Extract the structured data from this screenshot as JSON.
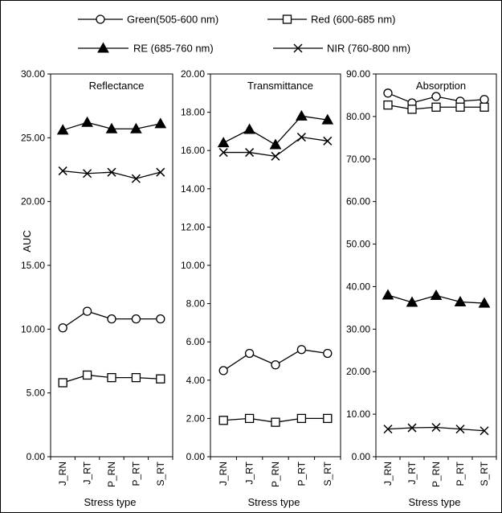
{
  "figure_border": true,
  "legend": {
    "placement": "top",
    "items": [
      {
        "label": "Green(505-600 nm)",
        "marker": "circle-open"
      },
      {
        "label": "Red (600-685 nm)",
        "marker": "square-open"
      },
      {
        "label": "RE (685-760 nm)",
        "marker": "triangle-filled"
      },
      {
        "label": "NIR (760-800 nm)",
        "marker": "x-cross"
      }
    ]
  },
  "chart_data": [
    {
      "type": "line",
      "title": "Reflectance",
      "ylabel": "AUC",
      "xlabel": "Stress type",
      "categories": [
        "J_RN",
        "J_RT",
        "P_RN",
        "P_RT",
        "S_RT"
      ],
      "ylim": [
        0,
        30
      ],
      "yticks": [
        "0.00",
        "5.00",
        "10.00",
        "15.00",
        "20.00",
        "25.00",
        "30.00"
      ],
      "series": [
        {
          "name": "Green(505-600 nm)",
          "marker": "circle-open",
          "values": [
            10.1,
            11.4,
            10.8,
            10.8,
            10.8
          ]
        },
        {
          "name": "Red (600-685 nm)",
          "marker": "square-open",
          "values": [
            5.8,
            6.4,
            6.2,
            6.2,
            6.1
          ]
        },
        {
          "name": "RE (685-760 nm)",
          "marker": "triangle-filled",
          "values": [
            25.6,
            26.2,
            25.7,
            25.7,
            26.1
          ]
        },
        {
          "name": "NIR (760-800 nm)",
          "marker": "x-cross",
          "values": [
            22.4,
            22.2,
            22.3,
            21.8,
            22.3
          ]
        }
      ]
    },
    {
      "type": "line",
      "title": "Transmittance",
      "ylabel": "",
      "xlabel": "Stress type",
      "categories": [
        "J_RN",
        "J_RT",
        "P_RN",
        "P_RT",
        "S_RT"
      ],
      "ylim": [
        0,
        20
      ],
      "yticks": [
        "0.00",
        "2.00",
        "4.00",
        "6.00",
        "8.00",
        "10.00",
        "12.00",
        "14.00",
        "16.00",
        "18.00",
        "20.00"
      ],
      "series": [
        {
          "name": "Green(505-600 nm)",
          "marker": "circle-open",
          "values": [
            4.5,
            5.4,
            4.8,
            5.6,
            5.4
          ]
        },
        {
          "name": "Red (600-685 nm)",
          "marker": "square-open",
          "values": [
            1.9,
            2.0,
            1.8,
            2.0,
            2.0
          ]
        },
        {
          "name": "RE (685-760 nm)",
          "marker": "triangle-filled",
          "values": [
            16.4,
            17.1,
            16.3,
            17.8,
            17.6
          ]
        },
        {
          "name": "NIR (760-800 nm)",
          "marker": "x-cross",
          "values": [
            15.9,
            15.9,
            15.7,
            16.7,
            16.5
          ]
        }
      ]
    },
    {
      "type": "line",
      "title": "Absorption",
      "ylabel": "",
      "xlabel": "Stress type",
      "categories": [
        "J_RN",
        "J_RT",
        "P_RN",
        "P_RT",
        "S_RT"
      ],
      "ylim": [
        0,
        90
      ],
      "yticks": [
        "0.00",
        "10.00",
        "20.00",
        "30.00",
        "40.00",
        "50.00",
        "60.00",
        "70.00",
        "80.00",
        "90.00"
      ],
      "series": [
        {
          "name": "Green(505-600 nm)",
          "marker": "circle-open",
          "values": [
            85.5,
            83.2,
            84.7,
            83.6,
            84.0
          ]
        },
        {
          "name": "Red (600-685 nm)",
          "marker": "square-open",
          "values": [
            82.7,
            81.7,
            82.2,
            82.2,
            82.2
          ]
        },
        {
          "name": "RE (685-760 nm)",
          "marker": "triangle-filled",
          "values": [
            38.0,
            36.3,
            37.9,
            36.4,
            36.1
          ]
        },
        {
          "name": "NIR (760-800 nm)",
          "marker": "x-cross",
          "values": [
            6.5,
            6.8,
            6.9,
            6.5,
            6.1
          ]
        }
      ]
    }
  ]
}
